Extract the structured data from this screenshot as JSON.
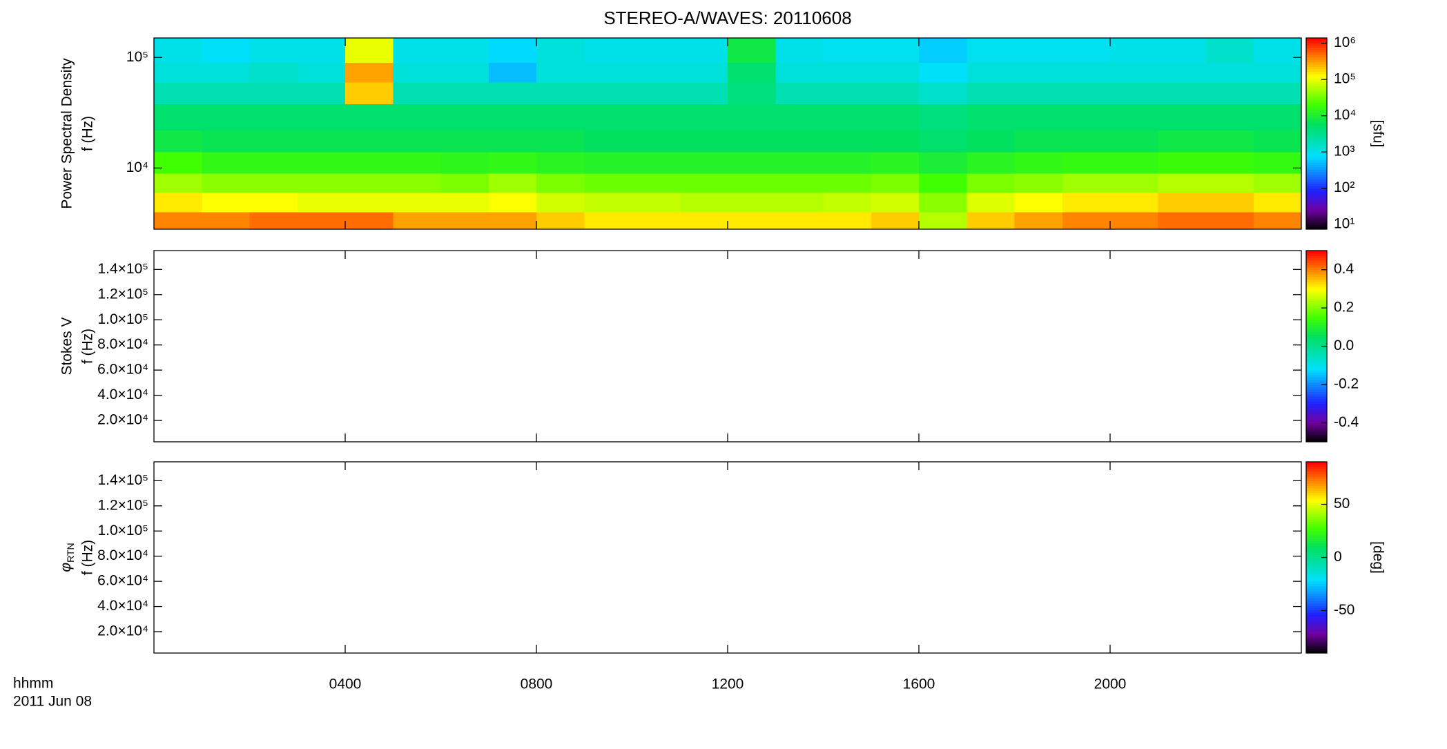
{
  "chart_data": [
    {
      "type": "heatmap",
      "title": "STEREO-A/WAVES: 20110608",
      "ylabel_title": "Power Spectral Density",
      "ylabel": "f (Hz)",
      "log_y": true,
      "xlim": [
        0,
        24
      ],
      "ylim": [
        2800,
        150000
      ],
      "yticks": [
        {
          "value": 10000,
          "label": "10⁴"
        },
        {
          "value": 100000,
          "label": "10⁵"
        }
      ],
      "time_bins": [
        0,
        1,
        2,
        3,
        4,
        5,
        6,
        7,
        8,
        9,
        10,
        11,
        12,
        13,
        14,
        15,
        16,
        17,
        18,
        19,
        20,
        21,
        22,
        23,
        24
      ],
      "freq_bins": [
        2800,
        4000,
        6000,
        9000,
        14000,
        22000,
        38000,
        60000,
        90000,
        150000
      ],
      "values": [
        [
          400000.0,
          400000.0,
          500000.0,
          500000.0,
          500000.0,
          300000.0,
          300000.0,
          300000.0,
          200000.0,
          150000.0,
          150000.0,
          150000.0,
          150000.0,
          150000.0,
          150000.0,
          200000.0,
          60000.0,
          200000.0,
          300000.0,
          400000.0,
          400000.0,
          500000.0,
          500000.0,
          400000.0
        ],
        [
          150000.0,
          120000.0,
          120000.0,
          100000.0,
          100000.0,
          100000.0,
          100000.0,
          120000.0,
          80000.0,
          70000.0,
          70000.0,
          60000.0,
          60000.0,
          60000.0,
          70000.0,
          80000.0,
          40000.0,
          90000.0,
          120000.0,
          150000.0,
          150000.0,
          200000.0,
          200000.0,
          150000.0
        ],
        [
          50000.0,
          40000.0,
          40000.0,
          40000.0,
          40000.0,
          40000.0,
          35000.0,
          50000.0,
          35000.0,
          30000.0,
          30000.0,
          30000.0,
          30000.0,
          30000.0,
          30000.0,
          35000.0,
          20000.0,
          35000.0,
          40000.0,
          50000.0,
          50000.0,
          60000.0,
          60000.0,
          50000.0
        ],
        [
          20000.0,
          15000.0,
          15000.0,
          15000.0,
          15000.0,
          15000.0,
          14000.0,
          15000.0,
          13000.0,
          12000.0,
          12000.0,
          12000.0,
          12000.0,
          12000.0,
          12000.0,
          13000.0,
          10000.0,
          13000.0,
          15000.0,
          16000.0,
          16000.0,
          18000.0,
          18000.0,
          16000.0
        ],
        [
          8000.0,
          7000.0,
          7000.0,
          7000.0,
          7000.0,
          7000.0,
          7000.0,
          7000.0,
          7000.0,
          6000.0,
          6000.0,
          6000.0,
          6000.0,
          6000.0,
          6000.0,
          6000.0,
          5000.0,
          6000.0,
          7000.0,
          7000.0,
          7000.0,
          8000.0,
          8000.0,
          7000.0
        ],
        [
          5000.0,
          5000.0,
          5000.0,
          5000.0,
          5000.0,
          5000.0,
          5000.0,
          5000.0,
          5000.0,
          5000.0,
          5000.0,
          5000.0,
          5000.0,
          5000.0,
          5000.0,
          5000.0,
          4000.0,
          5000.0,
          5000.0,
          5000.0,
          5000.0,
          5000.0,
          5000.0,
          5000.0
        ],
        [
          2000.0,
          2000.0,
          2000.0,
          2000.0,
          200000.0,
          2000.0,
          2000.0,
          2000.0,
          2000.0,
          2000.0,
          2000.0,
          2000.0,
          4000.0,
          2000.0,
          2000.0,
          2000.0,
          1500.0,
          2000.0,
          2000.0,
          2000.0,
          2000.0,
          2000.0,
          2000.0,
          2000.0
        ],
        [
          1200.0,
          1200.0,
          1500.0,
          1200.0,
          300000.0,
          1200.0,
          1200.0,
          500,
          1200.0,
          1200.0,
          1200.0,
          1200.0,
          5000.0,
          1200.0,
          1200.0,
          1200.0,
          800,
          1200.0,
          1200.0,
          1200.0,
          1200.0,
          1200.0,
          1200.0,
          1200.0
        ],
        [
          1000.0,
          800,
          1000.0,
          1000.0,
          100000.0,
          1000.0,
          1000.0,
          700,
          1200.0,
          1000.0,
          1000.0,
          1000.0,
          8000.0,
          1000.0,
          900,
          900,
          600,
          900,
          900,
          900,
          1000.0,
          1000.0,
          1500.0,
          1000.0
        ]
      ],
      "colorbar": {
        "log": true,
        "lim": [
          7.4,
          1400000.0
        ],
        "label": "[sfu]",
        "ticks": [
          {
            "value": 10,
            "label": "10¹"
          },
          {
            "value": 100,
            "label": "10²"
          },
          {
            "value": 1000,
            "label": "10³"
          },
          {
            "value": 10000,
            "label": "10⁴"
          },
          {
            "value": 100000,
            "label": "10⁵"
          },
          {
            "value": 1000000,
            "label": "10⁶"
          }
        ]
      }
    },
    {
      "type": "heatmap",
      "ylabel_title": "Stokes V",
      "ylabel": "f (Hz)",
      "log_y": false,
      "xlim": [
        0,
        24
      ],
      "ylim": [
        3000,
        155000
      ],
      "yticks": [
        {
          "value": 20000,
          "label": "2.0×10⁴"
        },
        {
          "value": 40000,
          "label": "4.0×10⁴"
        },
        {
          "value": 60000,
          "label": "6.0×10⁴"
        },
        {
          "value": 80000,
          "label": "8.0×10⁴"
        },
        {
          "value": 100000,
          "label": "1.0×10⁵"
        },
        {
          "value": 120000,
          "label": "1.2×10⁵"
        },
        {
          "value": 140000,
          "label": "1.4×10⁵"
        }
      ],
      "colorbar": {
        "log": false,
        "lim": [
          -0.5,
          0.5
        ],
        "ticks": [
          -0.4,
          -0.2,
          {
            "value": 0,
            "label": "0.0"
          },
          0.2,
          0.4
        ]
      }
    },
    {
      "type": "heatmap",
      "ylabel_symbol": "φ",
      "ylabel_subscript": "RTN",
      "ylabel": "f (Hz)",
      "log_y": false,
      "xlim": [
        0,
        24
      ],
      "ylim": [
        3000,
        155000
      ],
      "yticks": [
        {
          "value": 20000,
          "label": "2.0×10⁴"
        },
        {
          "value": 40000,
          "label": "4.0×10⁴"
        },
        {
          "value": 60000,
          "label": "6.0×10⁴"
        },
        {
          "value": 80000,
          "label": "8.0×10⁴"
        },
        {
          "value": 100000,
          "label": "1.0×10⁵"
        },
        {
          "value": 120000,
          "label": "1.2×10⁵"
        },
        {
          "value": 140000,
          "label": "1.4×10⁵"
        }
      ],
      "xticks": [
        {
          "value": 4,
          "label": "0400"
        },
        {
          "value": 8,
          "label": "0800"
        },
        {
          "value": 12,
          "label": "1200"
        },
        {
          "value": 16,
          "label": "1600"
        },
        {
          "value": 20,
          "label": "2000"
        }
      ],
      "xlabel": [
        "hhmm",
        "2011 Jun 08"
      ],
      "colorbar": {
        "log": false,
        "lim": [
          -90,
          90
        ],
        "label": "[deg]",
        "ticks": [
          -50,
          0,
          50
        ]
      }
    }
  ]
}
